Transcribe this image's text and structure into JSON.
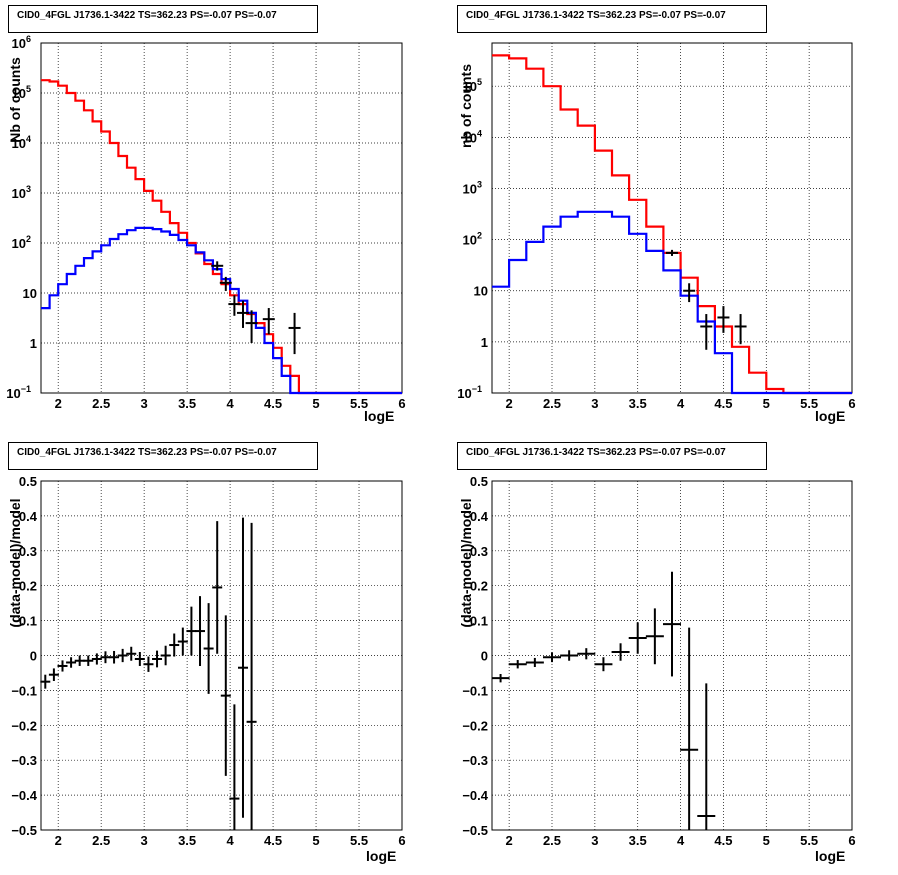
{
  "colors": {
    "model_total": "#ff0000",
    "model_source": "#0000ff",
    "data": "#000000",
    "grid": "#000000"
  },
  "chart_data": [
    {
      "type": "line",
      "title": "CID0_4FGL J1736.1-3422 TS=362.23 PS=-0.07 PS=-0.07",
      "xlabel": "logE",
      "ylabel": "Nb of counts",
      "xlim": [
        1.8,
        6.0
      ],
      "ylim": [
        0.1,
        1000000
      ],
      "yscale": "log",
      "grid": true,
      "xticks": [
        "2",
        "2.5",
        "3",
        "3.5",
        "4",
        "4.5",
        "5",
        "5.5",
        "6"
      ],
      "yticks": [
        "10^-1",
        "1",
        "10",
        "10^2",
        "10^3",
        "10^4",
        "10^5",
        "10^6"
      ],
      "step_width": 0.1,
      "series": [
        {
          "name": "",
          "color": "red",
          "x": [
            1.8,
            1.9,
            2.0,
            2.1,
            2.2,
            2.3,
            2.4,
            2.5,
            2.6,
            2.7,
            2.8,
            2.9,
            3.0,
            3.1,
            3.2,
            3.3,
            3.4,
            3.5,
            3.6,
            3.7,
            3.8,
            3.9,
            4.0,
            4.1,
            4.2,
            4.3,
            4.4,
            4.5,
            4.6,
            4.7,
            4.8,
            4.9,
            5.0,
            5.1,
            5.2,
            5.3,
            5.4,
            5.5,
            5.6,
            5.7,
            5.8,
            5.9
          ],
          "values": [
            180000,
            170000,
            140000,
            100000,
            70000,
            45000,
            27000,
            17000,
            10000,
            5500,
            3200,
            1900,
            1100,
            700,
            420,
            250,
            160,
            100,
            62,
            38,
            24,
            15,
            9,
            6,
            3.8,
            2.5,
            1.5,
            0.8,
            0.35,
            0.22,
            0.1,
            0.1,
            0.1,
            0.1,
            0.1,
            0.1,
            0.1,
            0.1,
            0.1,
            0.1,
            0.1,
            0.1
          ]
        },
        {
          "name": "",
          "color": "blue",
          "x": [
            1.8,
            1.9,
            2.0,
            2.1,
            2.2,
            2.3,
            2.4,
            2.5,
            2.6,
            2.7,
            2.8,
            2.9,
            3.0,
            3.1,
            3.2,
            3.3,
            3.4,
            3.5,
            3.6,
            3.7,
            3.8,
            3.9,
            4.0,
            4.1,
            4.2,
            4.3,
            4.4,
            4.5,
            4.6,
            4.7,
            4.8,
            4.9,
            5.0,
            5.1,
            5.2,
            5.3,
            5.4,
            5.5,
            5.6,
            5.7,
            5.8,
            5.9
          ],
          "values": [
            5,
            9,
            15,
            24,
            35,
            50,
            68,
            90,
            120,
            150,
            180,
            200,
            200,
            190,
            170,
            145,
            115,
            90,
            65,
            45,
            30,
            19,
            12,
            7,
            4,
            2,
            1,
            0.5,
            0.22,
            0.1,
            0.1,
            0.1,
            0.1,
            0.1,
            0.1,
            0.1,
            0.1,
            0.1,
            0.1,
            0.1,
            0.1,
            0.1
          ]
        }
      ],
      "data_points": [
        {
          "x": 3.85,
          "y": 35,
          "ylo": 28,
          "yhi": 43
        },
        {
          "x": 3.95,
          "y": 16,
          "ylo": 11,
          "yhi": 21
        },
        {
          "x": 4.05,
          "y": 6,
          "ylo": 3.5,
          "yhi": 9
        },
        {
          "x": 4.15,
          "y": 4,
          "ylo": 2,
          "yhi": 7
        },
        {
          "x": 4.25,
          "y": 2.5,
          "ylo": 1,
          "yhi": 4.5
        },
        {
          "x": 4.45,
          "y": 3,
          "ylo": 1.5,
          "yhi": 5
        },
        {
          "x": 4.75,
          "y": 2,
          "ylo": 0.6,
          "yhi": 4
        }
      ]
    },
    {
      "type": "line",
      "title": "CID0_4FGL J1736.1-3422 TS=362.23 PS=-0.07 PS=-0.07",
      "xlabel": "logE",
      "ylabel": "nb of counts",
      "xlim": [
        1.8,
        6.0
      ],
      "ylim": [
        0.1,
        700000
      ],
      "yscale": "log",
      "grid": true,
      "xticks": [
        "2",
        "2.5",
        "3",
        "3.5",
        "4",
        "4.5",
        "5",
        "5.5",
        "6"
      ],
      "yticks": [
        "10^-1",
        "1",
        "10",
        "10^2",
        "10^3",
        "10^4",
        "10^5"
      ],
      "step_width": 0.2,
      "series": [
        {
          "name": "",
          "color": "red",
          "x": [
            1.8,
            2.0,
            2.2,
            2.4,
            2.6,
            2.8,
            3.0,
            3.2,
            3.4,
            3.6,
            3.8,
            4.0,
            4.2,
            4.4,
            4.6,
            4.8,
            5.0,
            5.2,
            5.4,
            5.6,
            5.8
          ],
          "values": [
            400000,
            350000,
            220000,
            100000,
            35000,
            17000,
            5500,
            1800,
            600,
            180,
            55,
            18,
            5,
            2,
            0.8,
            0.25,
            0.12,
            0.1,
            0.1,
            0.1,
            0.1
          ]
        },
        {
          "name": "",
          "color": "blue",
          "x": [
            1.8,
            2.0,
            2.2,
            2.4,
            2.6,
            2.8,
            3.0,
            3.2,
            3.4,
            3.6,
            3.8,
            4.0,
            4.2,
            4.4,
            4.6,
            4.8,
            5.0,
            5.2,
            5.4,
            5.6,
            5.8
          ],
          "values": [
            12,
            40,
            90,
            180,
            280,
            350,
            350,
            280,
            130,
            60,
            25,
            8,
            2.5,
            0.6,
            0.1,
            0.1,
            0.1,
            0.1,
            0.1,
            0.1,
            0.1
          ]
        }
      ],
      "data_points": [
        {
          "x": 3.9,
          "y": 55,
          "ylo": 48,
          "yhi": 63
        },
        {
          "x": 4.1,
          "y": 10,
          "ylo": 6,
          "yhi": 14
        },
        {
          "x": 4.3,
          "y": 2,
          "ylo": 0.7,
          "yhi": 3.5
        },
        {
          "x": 4.5,
          "y": 3,
          "ylo": 1.5,
          "yhi": 5
        },
        {
          "x": 4.7,
          "y": 2,
          "ylo": 0.9,
          "yhi": 3.5
        }
      ]
    },
    {
      "type": "scatter",
      "title": "CID0_4FGL J1736.1-3422 TS=362.23 PS=-0.07 PS=-0.07",
      "xlabel": "logE",
      "ylabel": "(data-model)/model",
      "xlim": [
        1.8,
        6.0
      ],
      "ylim": [
        -0.5,
        0.5
      ],
      "grid": true,
      "xticks": [
        "2",
        "2.5",
        "3",
        "3.5",
        "4",
        "4.5",
        "5",
        "5.5",
        "6"
      ],
      "yticks": [
        "-0.5",
        "-0.4",
        "-0.3",
        "-0.2",
        "-0.1",
        "0",
        "0.1",
        "0.2",
        "0.3",
        "0.4",
        "0.5"
      ],
      "points": [
        {
          "x": 1.85,
          "y": -0.075,
          "err": 0.02
        },
        {
          "x": 1.95,
          "y": -0.055,
          "err": 0.018
        },
        {
          "x": 2.05,
          "y": -0.03,
          "err": 0.016
        },
        {
          "x": 2.15,
          "y": -0.02,
          "err": 0.015
        },
        {
          "x": 2.25,
          "y": -0.015,
          "err": 0.015
        },
        {
          "x": 2.35,
          "y": -0.015,
          "err": 0.015
        },
        {
          "x": 2.45,
          "y": -0.01,
          "err": 0.016
        },
        {
          "x": 2.55,
          "y": -0.005,
          "err": 0.017
        },
        {
          "x": 2.65,
          "y": -0.005,
          "err": 0.018
        },
        {
          "x": 2.75,
          "y": 0.0,
          "err": 0.019
        },
        {
          "x": 2.85,
          "y": 0.005,
          "err": 0.02
        },
        {
          "x": 2.95,
          "y": -0.01,
          "err": 0.02
        },
        {
          "x": 3.05,
          "y": -0.025,
          "err": 0.022
        },
        {
          "x": 3.15,
          "y": -0.01,
          "err": 0.024
        },
        {
          "x": 3.25,
          "y": 0.0,
          "err": 0.028
        },
        {
          "x": 3.35,
          "y": 0.03,
          "err": 0.033
        },
        {
          "x": 3.45,
          "y": 0.04,
          "err": 0.04
        },
        {
          "x": 3.55,
          "y": 0.07,
          "err": 0.07
        },
        {
          "x": 3.65,
          "y": 0.07,
          "err": 0.1
        },
        {
          "x": 3.75,
          "y": 0.02,
          "err": 0.13
        },
        {
          "x": 3.85,
          "y": 0.195,
          "err": 0.19
        },
        {
          "x": 3.95,
          "y": -0.115,
          "err": 0.23
        },
        {
          "x": 4.05,
          "y": -0.41,
          "err": 0.27
        },
        {
          "x": 4.15,
          "y": -0.035,
          "err": 0.43
        },
        {
          "x": 4.25,
          "y": -0.19,
          "err": 0.57
        }
      ]
    },
    {
      "type": "scatter",
      "title": "CID0_4FGL J1736.1-3422 TS=362.23 PS=-0.07 PS=-0.07",
      "xlabel": "logE",
      "ylabel": "(data-model)/model",
      "xlim": [
        1.8,
        6.0
      ],
      "ylim": [
        -0.5,
        0.5
      ],
      "grid": true,
      "xticks": [
        "2",
        "2.5",
        "3",
        "3.5",
        "4",
        "4.5",
        "5",
        "5.5",
        "6"
      ],
      "yticks": [
        "-0.5",
        "-0.4",
        "-0.3",
        "-0.2",
        "-0.1",
        "0",
        "0.1",
        "0.2",
        "0.3",
        "0.4",
        "0.5"
      ],
      "points": [
        {
          "x": 1.9,
          "y": -0.065,
          "err": 0.012
        },
        {
          "x": 2.1,
          "y": -0.025,
          "err": 0.012
        },
        {
          "x": 2.3,
          "y": -0.02,
          "err": 0.013
        },
        {
          "x": 2.5,
          "y": -0.005,
          "err": 0.014
        },
        {
          "x": 2.7,
          "y": 0.0,
          "err": 0.015
        },
        {
          "x": 2.9,
          "y": 0.005,
          "err": 0.016
        },
        {
          "x": 3.1,
          "y": -0.025,
          "err": 0.02
        },
        {
          "x": 3.3,
          "y": 0.01,
          "err": 0.025
        },
        {
          "x": 3.5,
          "y": 0.05,
          "err": 0.045
        },
        {
          "x": 3.7,
          "y": 0.055,
          "err": 0.08
        },
        {
          "x": 3.9,
          "y": 0.09,
          "err": 0.15
        },
        {
          "x": 4.1,
          "y": -0.27,
          "err": 0.35
        },
        {
          "x": 4.3,
          "y": -0.46,
          "err": 0.38
        }
      ]
    }
  ]
}
